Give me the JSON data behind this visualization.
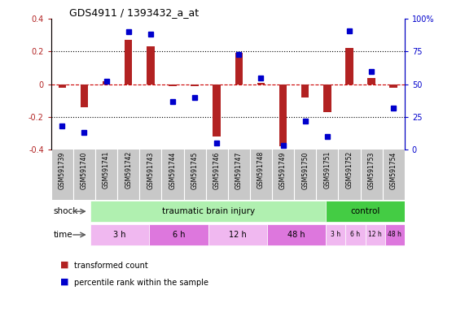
{
  "title": "GDS4911 / 1393432_a_at",
  "samples": [
    "GSM591739",
    "GSM591740",
    "GSM591741",
    "GSM591742",
    "GSM591743",
    "GSM591744",
    "GSM591745",
    "GSM591746",
    "GSM591747",
    "GSM591748",
    "GSM591749",
    "GSM591750",
    "GSM591751",
    "GSM591752",
    "GSM591753",
    "GSM591754"
  ],
  "red_values": [
    -0.02,
    -0.14,
    0.02,
    0.27,
    0.23,
    -0.01,
    -0.01,
    -0.32,
    0.19,
    0.01,
    -0.38,
    -0.08,
    -0.17,
    0.22,
    0.04,
    -0.02
  ],
  "blue_values": [
    18,
    13,
    52,
    90,
    88,
    37,
    40,
    5,
    73,
    55,
    3,
    22,
    10,
    91,
    60,
    32
  ],
  "ylim_left": [
    -0.4,
    0.4
  ],
  "ylim_right": [
    0,
    100
  ],
  "yticks_left": [
    -0.4,
    -0.2,
    0.0,
    0.2,
    0.4
  ],
  "ytick_labels_left": [
    "-0.4",
    "-0.2",
    "0",
    "0.2",
    "0.4"
  ],
  "yticks_right": [
    0,
    25,
    50,
    75,
    100
  ],
  "ytick_labels_right": [
    "0",
    "25",
    "50",
    "75",
    "100%"
  ],
  "red_color": "#b22222",
  "blue_color": "#0000cc",
  "dotted_line_color": "#000000",
  "zero_line_color": "#cc0000",
  "shock_groups": [
    {
      "label": "traumatic brain injury",
      "start": 0,
      "end": 12,
      "color": "#b0f0b0"
    },
    {
      "label": "control",
      "start": 12,
      "end": 16,
      "color": "#44cc44"
    }
  ],
  "time_groups": [
    {
      "label": "3 h",
      "start": 0,
      "end": 3,
      "color": "#f0b8f0"
    },
    {
      "label": "6 h",
      "start": 3,
      "end": 6,
      "color": "#dd77dd"
    },
    {
      "label": "12 h",
      "start": 6,
      "end": 9,
      "color": "#f0b8f0"
    },
    {
      "label": "48 h",
      "start": 9,
      "end": 12,
      "color": "#dd77dd"
    },
    {
      "label": "3 h",
      "start": 12,
      "end": 13,
      "color": "#f0b8f0"
    },
    {
      "label": "6 h",
      "start": 13,
      "end": 14,
      "color": "#f0b8f0"
    },
    {
      "label": "12 h",
      "start": 14,
      "end": 15,
      "color": "#f0b8f0"
    },
    {
      "label": "48 h",
      "start": 15,
      "end": 16,
      "color": "#dd77dd"
    }
  ],
  "shock_label": "shock",
  "time_label": "time",
  "legend1": "transformed count",
  "legend2": "percentile rank within the sample",
  "bg_color": "#ffffff",
  "gsm_area_color": "#c8c8c8",
  "bar_width": 0.35
}
